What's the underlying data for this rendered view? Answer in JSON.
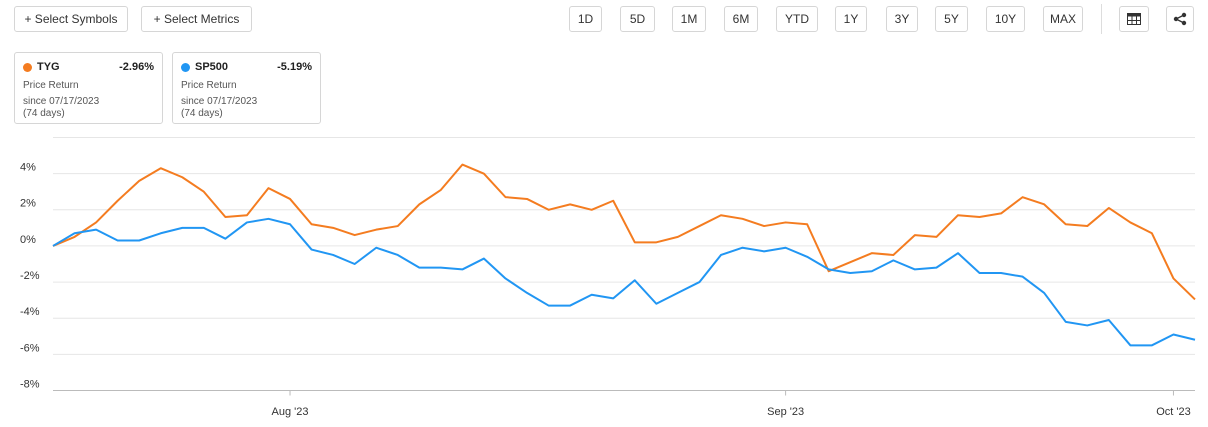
{
  "toolbar": {
    "select_symbols": "+ Select Symbols",
    "select_metrics": "+ Select Metrics",
    "periods": [
      "1D",
      "5D",
      "1M",
      "6M",
      "YTD",
      "1Y",
      "3Y",
      "5Y",
      "10Y",
      "MAX"
    ]
  },
  "cards": [
    {
      "change": "-2.96%",
      "metric": "Price Return",
      "since": "since 07/17/2023",
      "days": "(74 days)"
    },
    {
      "change": "-5.19%",
      "metric": "Price Return",
      "since": "since 07/17/2023",
      "days": "(74 days)"
    }
  ],
  "chart_data": {
    "type": "line",
    "categories": [
      null,
      null,
      null,
      null,
      null,
      null,
      null,
      null,
      null,
      null,
      null,
      "Aug '23",
      null,
      null,
      null,
      null,
      null,
      null,
      null,
      null,
      null,
      null,
      null,
      null,
      null,
      null,
      null,
      null,
      null,
      null,
      null,
      null,
      null,
      null,
      "Sep '23",
      null,
      null,
      null,
      null,
      null,
      null,
      null,
      null,
      null,
      null,
      null,
      null,
      null,
      null,
      null,
      null,
      null,
      "Oct '23",
      null
    ],
    "series": [
      {
        "name": "TYG",
        "color": "#f47c20",
        "values": [
          0,
          0.5,
          1.3,
          2.5,
          3.6,
          4.3,
          3.8,
          3.0,
          1.6,
          1.7,
          3.2,
          2.6,
          1.2,
          1.0,
          0.6,
          0.9,
          1.1,
          2.3,
          3.1,
          4.5,
          4.0,
          2.7,
          2.6,
          2.0,
          2.3,
          2.0,
          2.5,
          0.2,
          0.2,
          0.5,
          1.1,
          1.7,
          1.5,
          1.1,
          1.3,
          1.2,
          -1.4,
          -0.9,
          -0.4,
          -0.5,
          0.6,
          0.5,
          1.7,
          1.6,
          1.8,
          2.7,
          2.3,
          1.2,
          1.1,
          2.1,
          1.3,
          0.7,
          -1.8,
          -2.96
        ]
      },
      {
        "name": "SP500",
        "color": "#2196f3",
        "values": [
          0,
          0.7,
          0.9,
          0.3,
          0.3,
          0.7,
          1.0,
          1.0,
          0.4,
          1.3,
          1.5,
          1.2,
          -0.2,
          -0.5,
          -1.0,
          -0.1,
          -0.5,
          -1.2,
          -1.2,
          -1.3,
          -0.7,
          -1.8,
          -2.6,
          -3.3,
          -3.3,
          -2.7,
          -2.9,
          -1.9,
          -3.2,
          -2.6,
          -2.0,
          -0.5,
          -0.1,
          -0.3,
          -0.1,
          -0.6,
          -1.3,
          -1.5,
          -1.4,
          -0.8,
          -1.3,
          -1.2,
          -0.4,
          -1.5,
          -1.5,
          -1.7,
          -2.6,
          -4.2,
          -4.4,
          -4.1,
          -5.5,
          -5.5,
          -4.9,
          -5.19
        ]
      }
    ],
    "ylim": [
      -8,
      6
    ],
    "yticks": [
      {
        "value": -8,
        "label": "-8%"
      },
      {
        "value": -6,
        "label": "-6%"
      },
      {
        "value": -4,
        "label": "-4%"
      },
      {
        "value": -2,
        "label": "-2%"
      },
      {
        "value": 0,
        "label": "0%"
      },
      {
        "value": 2,
        "label": "2%"
      },
      {
        "value": 4,
        "label": "4%"
      }
    ],
    "grid": true
  }
}
